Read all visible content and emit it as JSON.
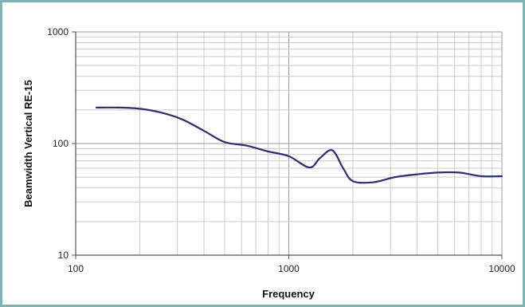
{
  "chart_data": {
    "type": "line",
    "xlabel": "Frequency",
    "ylabel": "Beamwidth Vertical RE-15",
    "x_scale": "log",
    "y_scale": "log",
    "xlim": [
      100,
      10000
    ],
    "ylim": [
      10,
      1000
    ],
    "x_ticks": [
      100,
      1000,
      10000
    ],
    "y_ticks": [
      10,
      100,
      1000
    ],
    "x_tick_labels": [
      "100",
      "1000",
      "10000"
    ],
    "y_tick_labels": [
      "10",
      "100",
      "1000"
    ],
    "grid": true,
    "legend": "none",
    "series": [
      {
        "color": "#2e2e6e",
        "x": [
          125,
          160,
          200,
          250,
          315,
          400,
          500,
          630,
          800,
          1000,
          1250,
          1400,
          1600,
          1800,
          2000,
          2500,
          3150,
          4000,
          5000,
          6300,
          8000,
          10000
        ],
        "y": [
          210,
          210,
          205,
          190,
          165,
          130,
          103,
          96,
          85,
          77,
          61,
          74,
          87,
          60,
          46,
          45,
          50,
          53,
          55,
          55,
          51,
          51
        ]
      }
    ]
  }
}
